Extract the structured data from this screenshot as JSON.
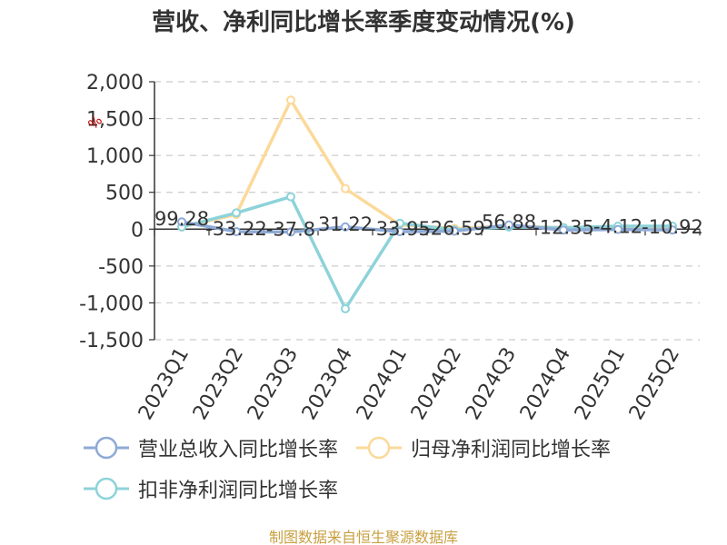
{
  "title": "营收、净利同比增长率季度变动情况(%)",
  "unit": "%",
  "source": "制图数据来自恒生聚源数据库",
  "colors": {
    "revenue": "#8eaad6",
    "net_profit": "#fcd999",
    "deducted_profit": "#8dd3d9",
    "axis": "#333333",
    "grid": "#cccccc",
    "source": "#c8a040",
    "unit": "#cc0000"
  },
  "chart_data": {
    "type": "line",
    "title": "营收、净利同比增长率季度变动情况(%)",
    "x": [
      "2023Q1",
      "2023Q2",
      "2023Q3",
      "2023Q4",
      "2024Q1",
      "2024Q2",
      "2024Q3",
      "2024Q4",
      "2025Q1",
      "2025Q2"
    ],
    "ylim": [
      -1500,
      2000
    ],
    "yticks": [
      2000,
      1500,
      1000,
      500,
      0,
      -500,
      -1000,
      -1500
    ],
    "ytick_labels": [
      "2,000",
      "1,500",
      "1,000",
      "500",
      "0",
      "-500",
      "-1,000",
      "-1,500"
    ],
    "grid": true,
    "legend_position": "bottom",
    "series": [
      {
        "name": "营业总收入同比增长率",
        "color": "#8eaad6",
        "values": [
          99.28,
          -33.22,
          -37.8,
          31.22,
          -33.95,
          -26.59,
          56.88,
          -12.35,
          -4.12,
          -10.92
        ],
        "labels": [
          "99.28",
          "-33.22",
          "-37.8",
          "31.22",
          "-33.95",
          "-26.59",
          "56.88",
          "-12.35",
          "-4.12",
          "-10.92"
        ]
      },
      {
        "name": "归母净利润同比增长率",
        "color": "#fcd999",
        "values": [
          30,
          200,
          1750,
          550,
          60,
          10,
          40,
          20,
          30,
          25
        ]
      },
      {
        "name": "扣非净利润同比增长率",
        "color": "#8dd3d9",
        "values": [
          30,
          220,
          440,
          -1080,
          80,
          -10,
          30,
          20,
          40,
          40
        ]
      }
    ]
  }
}
